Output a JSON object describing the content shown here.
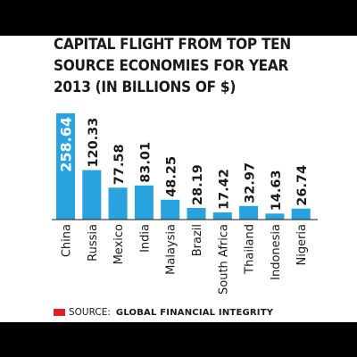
{
  "colors": {
    "bar": "#29a3e0",
    "text": "#1a1a1a",
    "source_marker": "#e21f26",
    "band": "#000000"
  },
  "title_lines": [
    "CAPITAL FLIGHT FROM TOP TEN",
    "SOURCE ECONOMIES FOR YEAR",
    "2013 (IN BILLIONS OF $)"
  ],
  "source": {
    "label": "SOURCE:",
    "value": "GLOBAL FINANCIAL INTEGRITY"
  },
  "chart_data": {
    "type": "bar",
    "title": "CAPITAL FLIGHT FROM TOP TEN SOURCE ECONOMIES FOR YEAR 2013 (IN BILLIONS OF $)",
    "categories": [
      "China",
      "Russia",
      "Mexico",
      "India",
      "Malaysia",
      "Brazil",
      "South Africa",
      "Thailand",
      "Indonesia",
      "Nigeria"
    ],
    "values": [
      258.64,
      120.33,
      77.58,
      83.01,
      48.25,
      28.19,
      17.42,
      32.97,
      14.63,
      26.74
    ],
    "value_labels": [
      "258.64",
      "120.33",
      "77.58",
      "83.01",
      "48.25",
      "28.19",
      "17.42",
      "32.97",
      "14.63",
      "26.74"
    ],
    "xlabel": "",
    "ylabel": "",
    "ylim": [
      0,
      258.64
    ],
    "grid": false,
    "legend": "none"
  }
}
